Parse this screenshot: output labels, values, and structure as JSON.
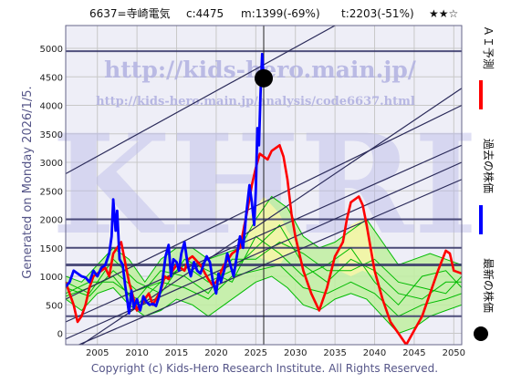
{
  "header": {
    "code_name": "6637=寺崎電気",
    "current": "c:4475",
    "min": "m:1399(-69%)",
    "target": "t:2203(-51%)",
    "rating": "★★☆"
  },
  "side_note": "Generated on Monday 2026/1/5.",
  "watermarks": {
    "site": "http://kids-hero.main.jp/",
    "analysis": "http://kids-hero.main.jp/analysis/code6637.html",
    "big": "KHRI"
  },
  "footer": "Copyright (c) Kids-Hero Research Institute. All Rights Reserved.",
  "legend": [
    {
      "label": "ＡＩ予測",
      "color": "#ff0000"
    },
    {
      "label": "過去の株価",
      "color": "#0000ff"
    },
    {
      "label": "最新の株価",
      "color": "#000000"
    }
  ],
  "colors": {
    "price": "#0000ff",
    "ai": "#ff0000",
    "band": "#00bb00",
    "band_fill": "#bfeea0",
    "band_fill_yellow": "#f5f5a8",
    "trend": "#2b2b5a",
    "h_line": "#333366",
    "grid": "#c8c8c8",
    "plot_bg": "#eeeef7"
  },
  "chart_data": {
    "type": "line",
    "title": "",
    "xlabel": "",
    "ylabel": "",
    "xlim": [
      2001,
      2051
    ],
    "ylim": [
      -200,
      5400
    ],
    "xticks": [
      2005,
      2010,
      2015,
      2020,
      2025,
      2030,
      2035,
      2040,
      2045,
      2050
    ],
    "yticks": [
      0,
      500,
      1000,
      1500,
      2000,
      2500,
      3000,
      3500,
      4000,
      4500,
      5000
    ],
    "latest_point": {
      "x": 2026.0,
      "y": 4475
    },
    "current_year": 2026.0,
    "h_lines": [
      4950,
      2000,
      1500,
      1200,
      300
    ],
    "trend_lines": [
      {
        "x": [
          2001,
          2035
        ],
        "y": [
          2800,
          5400
        ]
      },
      {
        "x": [
          2001,
          2051
        ],
        "y": [
          600,
          4000
        ]
      },
      {
        "x": [
          2001,
          2051
        ],
        "y": [
          200,
          3300
        ]
      },
      {
        "x": [
          2001,
          2051
        ],
        "y": [
          -100,
          3000
        ]
      },
      {
        "x": [
          2001,
          2051
        ],
        "y": [
          -300,
          2700
        ]
      },
      {
        "x": [
          2003,
          2051
        ],
        "y": [
          -200,
          4300
        ]
      }
    ],
    "series": [
      {
        "name": "過去の株価",
        "x": [
          2001.0,
          2001.5,
          2002.0,
          2002.5,
          2003.0,
          2003.5,
          2004.0,
          2004.5,
          2005.0,
          2005.5,
          2006.0,
          2006.5,
          2006.8,
          2007.0,
          2007.3,
          2007.5,
          2007.8,
          2008.2,
          2008.5,
          2008.8,
          2009.0,
          2009.3,
          2009.6,
          2010.0,
          2010.4,
          2010.8,
          2011.2,
          2011.6,
          2012.0,
          2012.4,
          2012.8,
          2013.2,
          2013.6,
          2014.0,
          2014.3,
          2014.6,
          2015.0,
          2015.3,
          2015.6,
          2016.0,
          2016.4,
          2016.8,
          2017.2,
          2017.6,
          2018.0,
          2018.4,
          2018.8,
          2019.2,
          2019.6,
          2020.0,
          2020.3,
          2020.6,
          2021.0,
          2021.4,
          2021.8,
          2022.2,
          2022.6,
          2023.0,
          2023.4,
          2023.8,
          2024.2,
          2024.5,
          2024.8,
          2025.0,
          2025.2,
          2025.4,
          2025.6,
          2025.8,
          2026.0
        ],
        "y": [
          820,
          900,
          1100,
          1050,
          1000,
          980,
          900,
          1100,
          1000,
          1150,
          1200,
          1400,
          1700,
          2350,
          1800,
          2150,
          1300,
          1200,
          850,
          550,
          350,
          750,
          450,
          600,
          400,
          650,
          550,
          500,
          520,
          480,
          650,
          900,
          1350,
          1550,
          1000,
          1300,
          1250,
          1100,
          1400,
          1600,
          1200,
          1000,
          1250,
          1100,
          1050,
          1200,
          1350,
          1250,
          900,
          700,
          1050,
          900,
          1100,
          1400,
          1200,
          1000,
          1350,
          1700,
          1500,
          2100,
          2600,
          2300,
          1900,
          2500,
          3600,
          3300,
          4200,
          4900,
          4475
        ]
      },
      {
        "name": "ＡＩ予測",
        "x": [
          2001,
          2002,
          2002.5,
          2003,
          2003.5,
          2004,
          2004.5,
          2005,
          2005.5,
          2006,
          2006.5,
          2007,
          2008,
          2009,
          2010,
          2011,
          2011.5,
          2012,
          2013,
          2013.5,
          2014,
          2014.5,
          2015,
          2016,
          2016.5,
          2017,
          2018,
          2019,
          2019.5,
          2020,
          2021,
          2022,
          2023,
          2024,
          2024.5,
          2025,
          2025.5,
          2026,
          2026.5,
          2027,
          2027.5,
          2028,
          2028.5,
          2029,
          2029.5,
          2030,
          2031,
          2032,
          2033,
          2034,
          2035,
          2036,
          2036.5,
          2037,
          2038,
          2038.5,
          2039,
          2040,
          2041,
          2042,
          2043,
          2044,
          2045,
          2046,
          2047,
          2048,
          2049,
          2049.5,
          2050,
          2051
        ],
        "y": [
          900,
          500,
          200,
          300,
          500,
          800,
          1000,
          1050,
          1100,
          1150,
          1000,
          1400,
          1600,
          900,
          400,
          600,
          700,
          500,
          750,
          1000,
          950,
          1100,
          1200,
          1100,
          1300,
          1350,
          1200,
          950,
          850,
          900,
          1200,
          1400,
          1500,
          2200,
          2600,
          2900,
          3150,
          3100,
          3050,
          3200,
          3250,
          3300,
          3100,
          2700,
          2100,
          1700,
          1100,
          700,
          400,
          800,
          1350,
          1600,
          2000,
          2300,
          2400,
          2250,
          1900,
          1100,
          600,
          200,
          0,
          -200,
          50,
          300,
          700,
          1100,
          1450,
          1400,
          1100,
          1050
        ]
      }
    ],
    "band_upper": {
      "x": [
        2001,
        2003,
        2005,
        2007,
        2009,
        2011,
        2013,
        2015,
        2017,
        2019,
        2021,
        2023,
        2025,
        2027,
        2029,
        2031,
        2033,
        2035,
        2037,
        2039,
        2041,
        2043,
        2045,
        2047,
        2049,
        2051
      ],
      "y": [
        1000,
        900,
        1200,
        1500,
        1300,
        900,
        1300,
        1500,
        1500,
        1300,
        1400,
        1500,
        2000,
        2400,
        2200,
        1700,
        1500,
        1600,
        1800,
        2000,
        1600,
        1200,
        1300,
        1400,
        1300,
        1200
      ]
    },
    "band_lower": {
      "x": [
        2001,
        2003,
        2005,
        2007,
        2009,
        2011,
        2013,
        2015,
        2017,
        2019,
        2021,
        2023,
        2025,
        2027,
        2029,
        2031,
        2033,
        2035,
        2037,
        2039,
        2041,
        2043,
        2045,
        2047,
        2049,
        2051
      ],
      "y": [
        600,
        400,
        700,
        800,
        500,
        300,
        400,
        600,
        500,
        300,
        500,
        700,
        900,
        1000,
        800,
        500,
        400,
        600,
        700,
        600,
        300,
        0,
        100,
        300,
        400,
        500
      ]
    },
    "band_lines": [
      {
        "x": [
          2001,
          2004,
          2007,
          2010,
          2013,
          2016,
          2019,
          2022,
          2025,
          2028,
          2031,
          2034,
          2037,
          2040,
          2043,
          2046,
          2049,
          2051
        ],
        "y": [
          800,
          650,
          1100,
          750,
          900,
          1200,
          900,
          1100,
          1500,
          1900,
          1200,
          900,
          1300,
          1100,
          700,
          600,
          900,
          900
        ]
      },
      {
        "x": [
          2001,
          2004,
          2007,
          2010,
          2013,
          2016,
          2019,
          2022,
          2025,
          2028,
          2031,
          2034,
          2037,
          2040,
          2043,
          2046,
          2049,
          2051
        ],
        "y": [
          700,
          900,
          900,
          600,
          1100,
          1000,
          700,
          1300,
          1300,
          1600,
          1400,
          1100,
          1100,
          1300,
          900,
          800,
          700,
          1000
        ]
      },
      {
        "x": [
          2001,
          2004,
          2007,
          2010,
          2013,
          2016,
          2019,
          2022,
          2025,
          2028,
          2031,
          2034,
          2037,
          2040,
          2043,
          2046,
          2049,
          2051
        ],
        "y": [
          900,
          700,
          1300,
          900,
          700,
          1300,
          1100,
          900,
          1700,
          1400,
          1000,
          1200,
          1500,
          900,
          500,
          1000,
          1100,
          800
        ]
      },
      {
        "x": [
          2001,
          2004,
          2007,
          2010,
          2013,
          2016,
          2019,
          2022,
          2025,
          2028,
          2031,
          2034,
          2037,
          2040,
          2043,
          2046,
          2049,
          2051
        ],
        "y": [
          650,
          800,
          1000,
          500,
          900,
          800,
          600,
          1000,
          1100,
          1200,
          800,
          700,
          900,
          700,
          300,
          500,
          600,
          700
        ]
      }
    ],
    "yellow_regions": [
      {
        "x": [
          2024,
          2026,
          2028,
          2029,
          2030
        ],
        "upper": [
          2000,
          2400,
          2100,
          1800,
          1600
        ],
        "lower": [
          1400,
          1300,
          1200,
          1400,
          1400
        ]
      },
      {
        "x": [
          2035.5,
          2037,
          2038.5,
          2040
        ],
        "upper": [
          1400,
          1900,
          2000,
          1400
        ],
        "lower": [
          1100,
          1000,
          1100,
          1000
        ]
      }
    ]
  }
}
